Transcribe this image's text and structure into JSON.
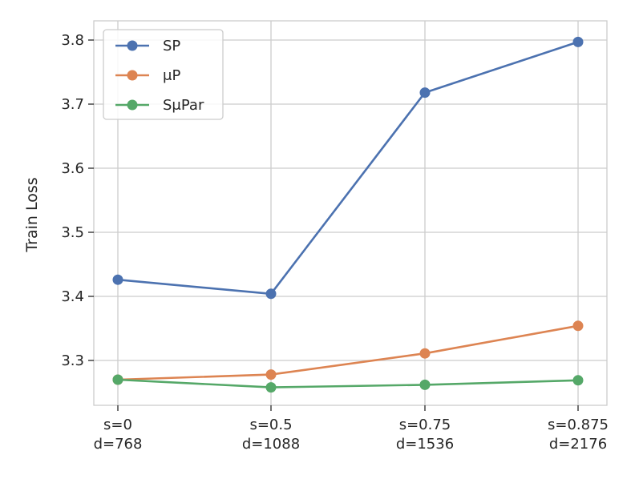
{
  "chart_data": {
    "type": "line",
    "categories": [
      [
        "s=0",
        "d=768"
      ],
      [
        "s=0.5",
        "d=1088"
      ],
      [
        "s=0.75",
        "d=1536"
      ],
      [
        "s=0.875",
        "d=2176"
      ]
    ],
    "series": [
      {
        "name": "SP",
        "color": "#4c72b0",
        "values": [
          3.426,
          3.404,
          3.718,
          3.797
        ]
      },
      {
        "name": "μP",
        "color": "#dd8452",
        "values": [
          3.27,
          3.278,
          3.311,
          3.354
        ]
      },
      {
        "name": "SμPar",
        "color": "#55a868",
        "values": [
          3.27,
          3.258,
          3.262,
          3.269
        ]
      }
    ],
    "title": "",
    "xlabel": "",
    "ylabel": "Train Loss",
    "ylim": [
      3.23,
      3.83
    ],
    "yticks": [
      3.3,
      3.4,
      3.5,
      3.6,
      3.7,
      3.8
    ],
    "ytick_labels": [
      "3.3",
      "3.4",
      "3.5",
      "3.6",
      "3.7",
      "3.8"
    ],
    "grid": true,
    "legend_position": "top-left"
  }
}
